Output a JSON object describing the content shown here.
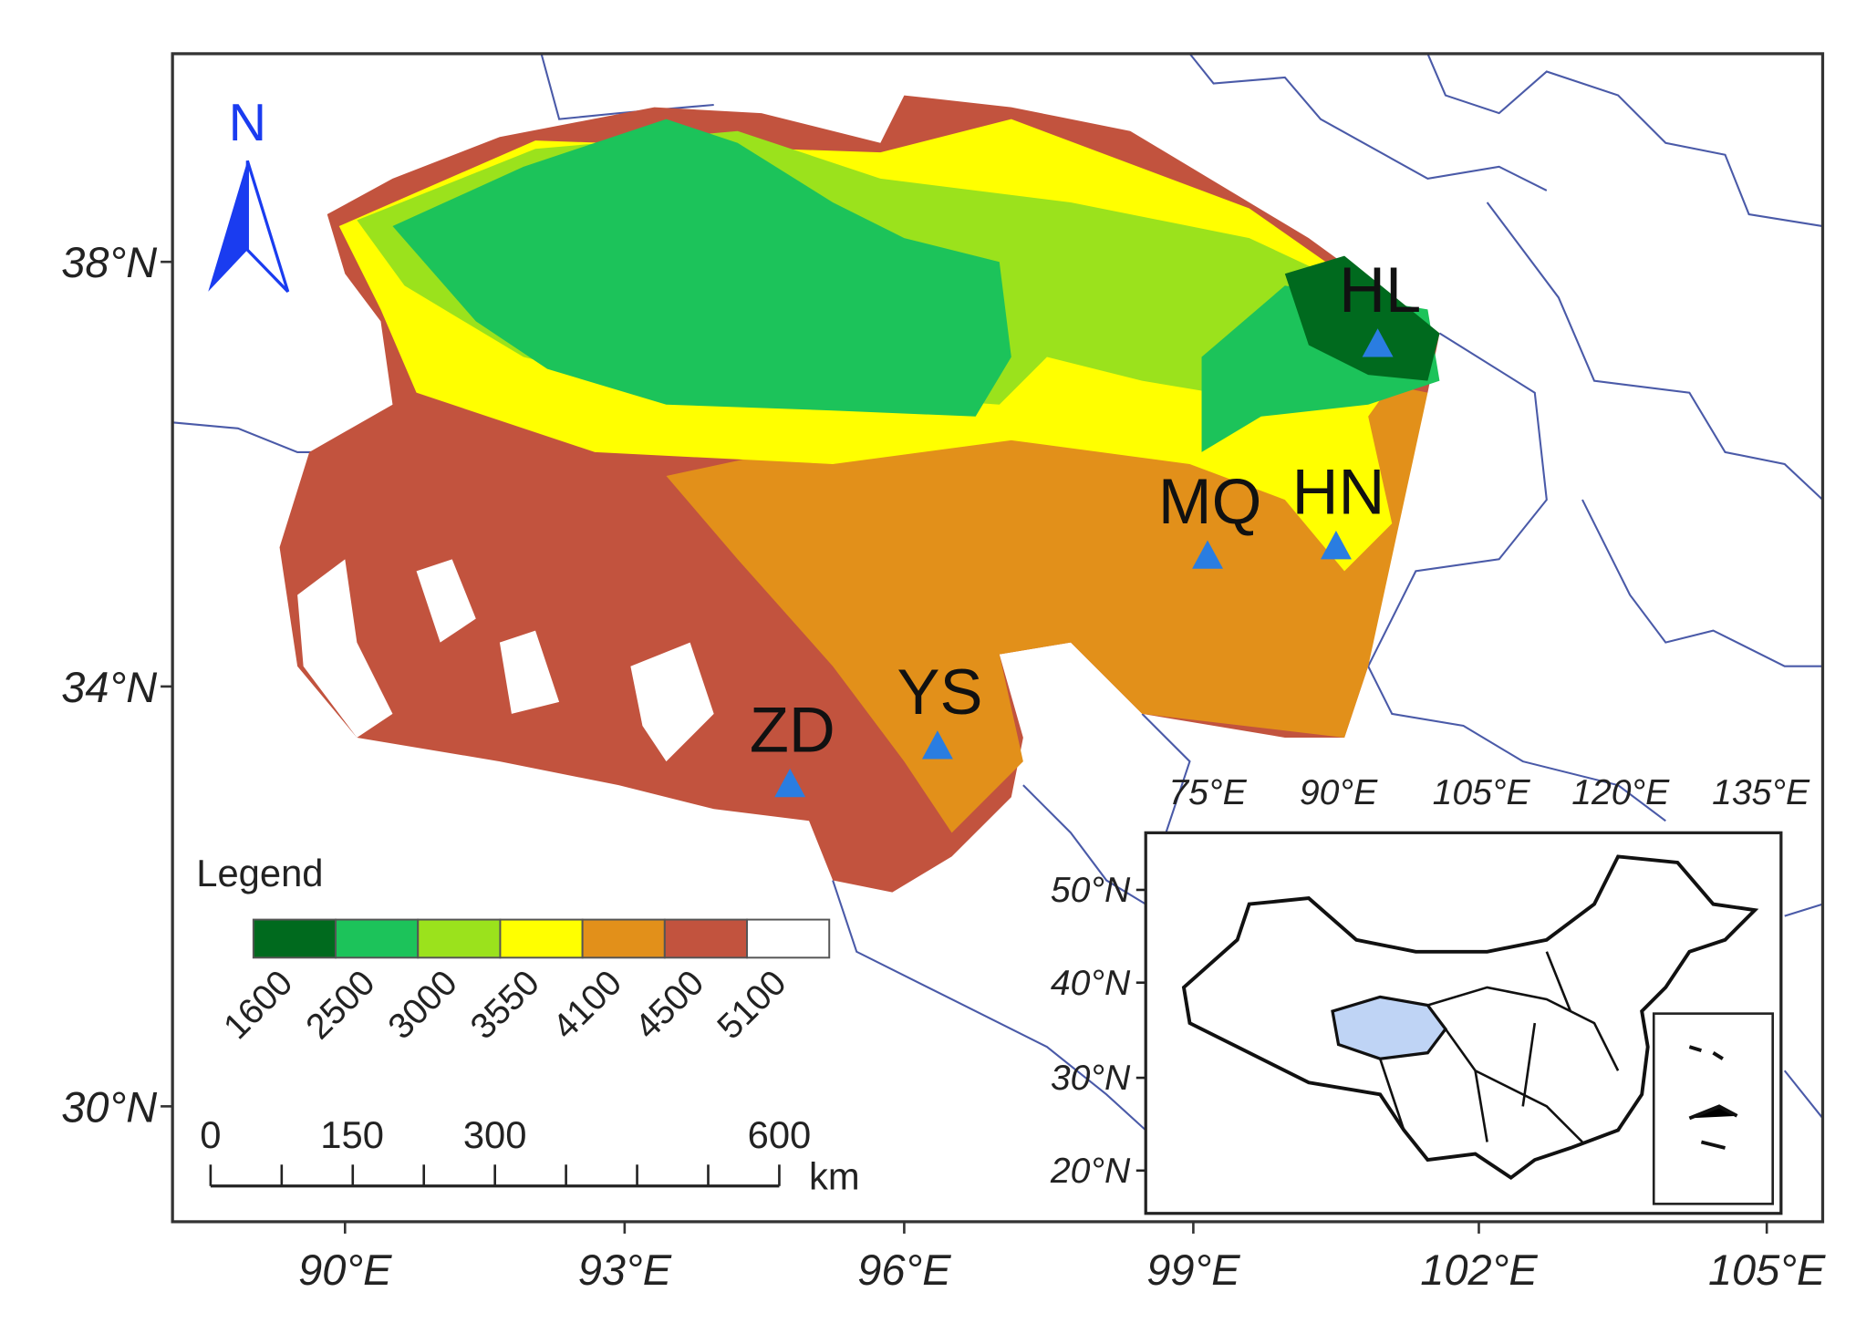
{
  "map": {
    "lat_labels": [
      "38°N",
      "34°N",
      "30°N"
    ],
    "lon_labels": [
      "90°E",
      "93°E",
      "96°E",
      "99°E",
      "102°E",
      "105°E"
    ],
    "north": "N",
    "stations": [
      "HL",
      "MQ",
      "HN",
      "YS",
      "ZD"
    ],
    "legend": {
      "title": "Legend",
      "breaks": [
        1600,
        2500,
        3000,
        3550,
        4100,
        4500,
        5100
      ],
      "colors": [
        "#006a1e",
        "#1cc35a",
        "#9be21c",
        "#ffff00",
        "#e2901a",
        "#c2533e",
        "#ffffff"
      ]
    },
    "scale_bar": {
      "labels": [
        "0",
        "150",
        "300",
        "600"
      ],
      "unit": "km"
    },
    "inset": {
      "lon_labels": [
        "75°E",
        "90°E",
        "105°E",
        "120°E",
        "135°E"
      ],
      "lat_labels": [
        "50°N",
        "40°N",
        "30°N",
        "20°N"
      ]
    }
  }
}
